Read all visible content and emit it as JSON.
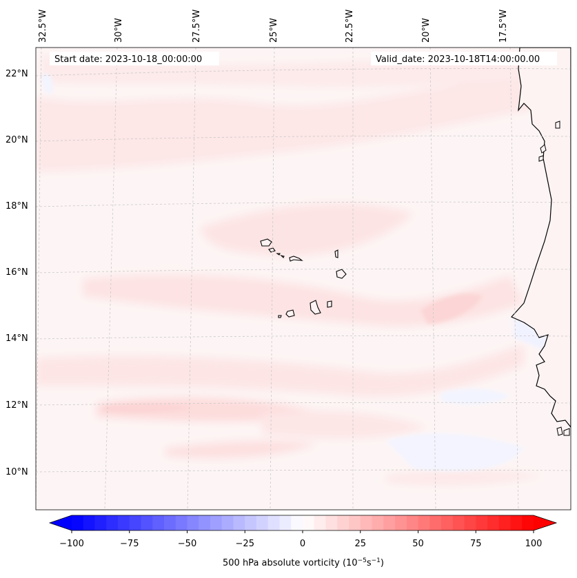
{
  "header": {
    "start_date": "Start date: 2023-10-18_00:00:00",
    "valid_date": "Valid_date: 2023-10-18T14:00:00.00"
  },
  "map": {
    "lon_labels": [
      "32.5°W",
      "30°W",
      "27.5°W",
      "25°W",
      "22.5°W",
      "20°W",
      "17.5°W"
    ],
    "lat_labels": [
      "22°N",
      "20°N",
      "18°N",
      "16°N",
      "14°N",
      "12°N",
      "10°N"
    ],
    "gridlines": "dashed",
    "ocean_color": "#fdf5f5",
    "coastline_color": "#000000"
  },
  "colorbar": {
    "ticks": [
      "−100",
      "−75",
      "−50",
      "−25",
      "0",
      "25",
      "50",
      "75",
      "100"
    ],
    "label_prefix": "500 hPa absolute vorticity (10",
    "label_exp1": "−5",
    "label_mid": "s",
    "label_exp2": "−1",
    "label_suffix": ")",
    "vmin": -100,
    "vmax": 100,
    "levels": 41,
    "extend": "both",
    "colormap": "bwr",
    "low_color": "#0000ff",
    "mid_color": "#ffffff",
    "high_color": "#ff0000"
  }
}
